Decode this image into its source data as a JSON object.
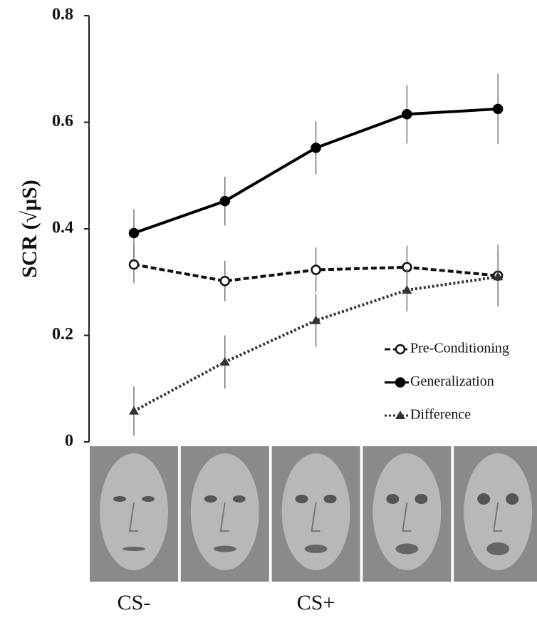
{
  "chart_data": {
    "type": "line",
    "y_label": "SCR (√μS)",
    "categories": [
      "CS-",
      null,
      "CS+",
      null,
      null
    ],
    "ylim": [
      0,
      0.8
    ],
    "yticks": [
      0,
      0.2,
      0.4,
      0.6,
      0.8
    ],
    "legend": "right",
    "series": [
      {
        "name": "Pre-Conditioning",
        "color": "#111111",
        "marker": "circle-open",
        "dash": "dashed",
        "values": [
          0.333,
          0.302,
          0.323,
          0.328,
          0.312
        ],
        "errors": [
          0.035,
          0.038,
          0.042,
          0.04,
          0.058
        ]
      },
      {
        "name": "Generalization",
        "color": "#000000",
        "marker": "circle",
        "dash": "solid",
        "values": [
          0.392,
          0.452,
          0.552,
          0.615,
          0.625
        ],
        "errors": [
          0.045,
          0.046,
          0.05,
          0.055,
          0.066
        ]
      },
      {
        "name": "Difference",
        "color": "#333333",
        "marker": "triangle",
        "dash": "dotted",
        "values": [
          0.058,
          0.15,
          0.228,
          0.285,
          0.31
        ],
        "errors": [
          0.046,
          0.05,
          0.05,
          0.04,
          0.045
        ]
      }
    ]
  }
}
